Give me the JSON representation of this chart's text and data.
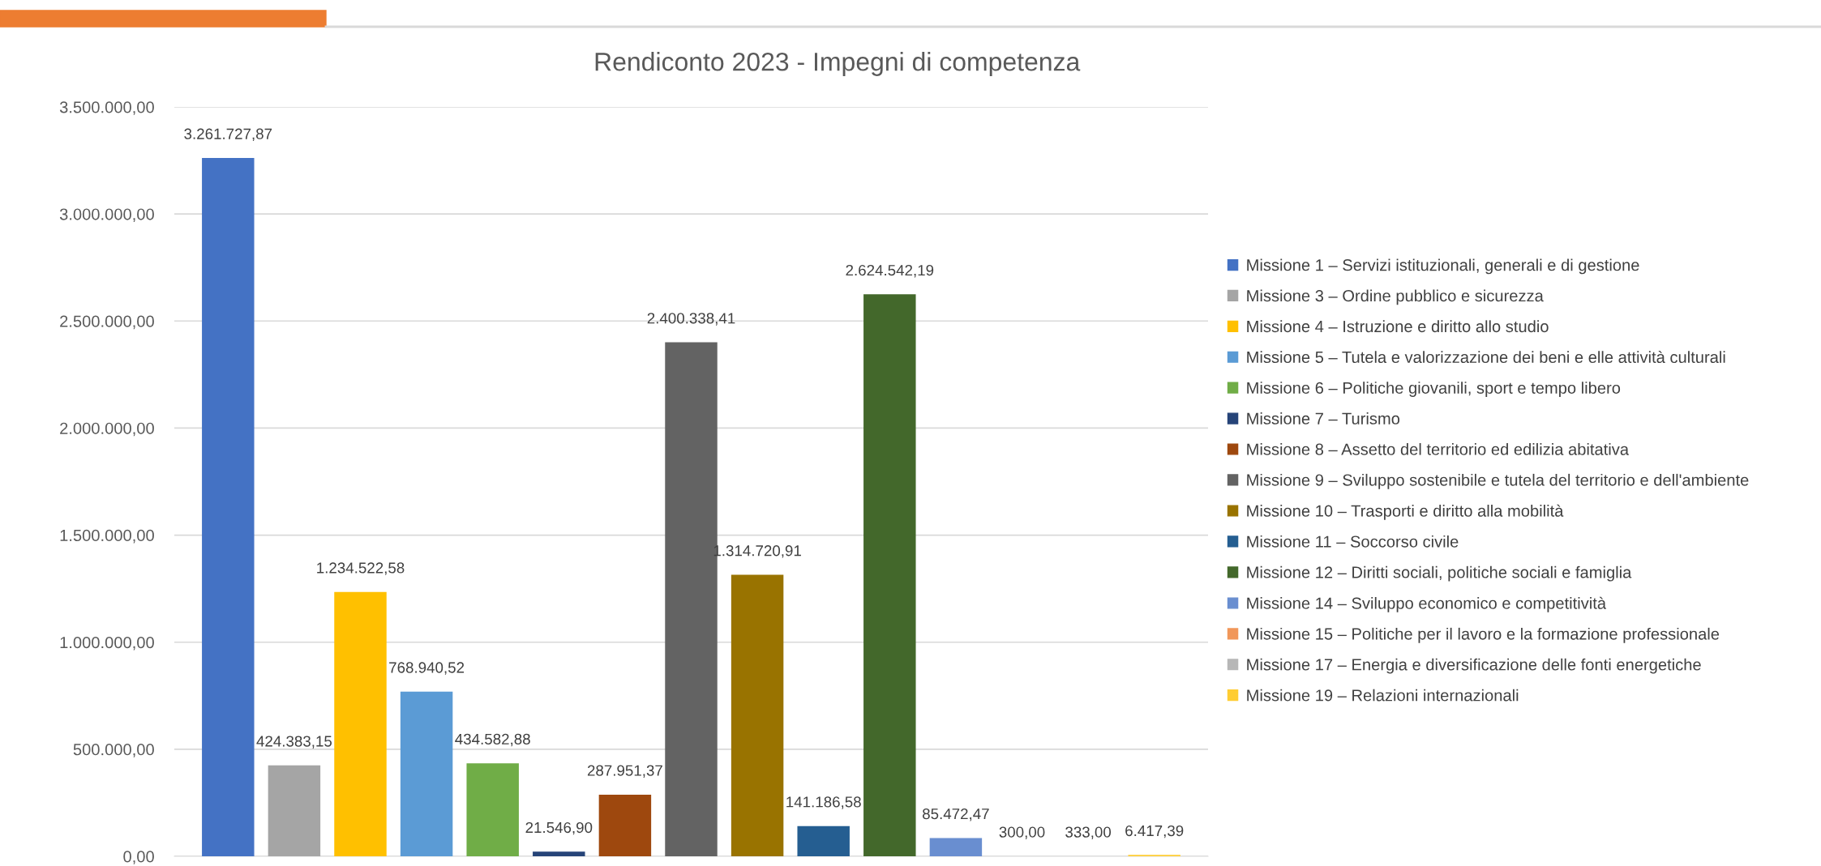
{
  "chart_data": {
    "type": "bar",
    "title": "Rendiconto 2023 - Impegni di competenza",
    "categories": [
      null
    ],
    "series": [
      {
        "name": "Missione 1 – Servizi istituzionali, generali e di gestione",
        "color": "#4472c4",
        "values": [
          3261727.87
        ],
        "value_labels": [
          "3.261.727,87"
        ]
      },
      {
        "name": "Missione 3 – Ordine pubblico e sicurezza",
        "color": "#a5a5a5",
        "values": [
          424383.15
        ],
        "value_labels": [
          "424.383,15"
        ]
      },
      {
        "name": "Missione 4 – Istruzione e diritto allo studio",
        "color": "#ffc000",
        "values": [
          1234522.58
        ],
        "value_labels": [
          "1.234.522,58"
        ]
      },
      {
        "name": "Missione 5 – Tutela e valorizzazione dei beni e elle attività culturali",
        "color": "#5b9bd5",
        "values": [
          768940.52
        ],
        "value_labels": [
          "768.940,52"
        ]
      },
      {
        "name": "Missione 6 – Politiche giovanili, sport e tempo libero",
        "color": "#70ad47",
        "values": [
          434582.88
        ],
        "value_labels": [
          "434.582,88"
        ]
      },
      {
        "name": "Missione 7 – Turismo",
        "color": "#264478",
        "values": [
          21546.9
        ],
        "value_labels": [
          "21.546,90"
        ]
      },
      {
        "name": "Missione 8 – Assetto del territorio ed edilizia abitativa",
        "color": "#9e480e",
        "values": [
          287951.37
        ],
        "value_labels": [
          "287.951,37"
        ]
      },
      {
        "name": "Missione 9 – Sviluppo sostenibile e tutela del territorio e dell'ambiente",
        "color": "#636363",
        "values": [
          2400338.41
        ],
        "value_labels": [
          "2.400.338,41"
        ]
      },
      {
        "name": "Missione 10 – Trasporti e diritto alla mobilità",
        "color": "#997300",
        "values": [
          1314720.91
        ],
        "value_labels": [
          "1.314.720,91"
        ]
      },
      {
        "name": "Missione 11 – Soccorso civile",
        "color": "#255e91",
        "values": [
          141186.58
        ],
        "value_labels": [
          "141.186,58"
        ]
      },
      {
        "name": "Missione 12 – Diritti sociali, politiche sociali e famiglia",
        "color": "#43682b",
        "values": [
          2624542.19
        ],
        "value_labels": [
          "2.624.542,19"
        ]
      },
      {
        "name": "Missione 14 – Sviluppo economico e competitività",
        "color": "#698ed0",
        "values": [
          85472.47
        ],
        "value_labels": [
          "85.472,47"
        ]
      },
      {
        "name": "Missione 15 – Politiche per il lavoro e la formazione professionale",
        "color": "#f1975a",
        "values": [
          300.0
        ],
        "value_labels": [
          "300,00"
        ]
      },
      {
        "name": "Missione 17 – Energia e diversificazione delle fonti energetiche",
        "color": "#b7b7b7",
        "values": [
          333.0
        ],
        "value_labels": [
          "333,00"
        ]
      },
      {
        "name": "Missione 19 – Relazioni internazionali",
        "color": "#ffcd33",
        "values": [
          6417.39
        ],
        "value_labels": [
          "6.417,39"
        ]
      }
    ],
    "ylim": [
      0,
      3500000
    ],
    "yticks": [
      {
        "value": 0,
        "label": "0,00"
      },
      {
        "value": 500000,
        "label": "500.000,00"
      },
      {
        "value": 1000000,
        "label": "1.000.000,00"
      },
      {
        "value": 1500000,
        "label": "1.500.000,00"
      },
      {
        "value": 2000000,
        "label": "2.000.000,00"
      },
      {
        "value": 2500000,
        "label": "2.500.000,00"
      },
      {
        "value": 3000000,
        "label": "3.000.000,00"
      },
      {
        "value": 3500000,
        "label": "3.500.000,00"
      }
    ],
    "grid": "y",
    "legend": "right",
    "tick_labels": "y"
  }
}
